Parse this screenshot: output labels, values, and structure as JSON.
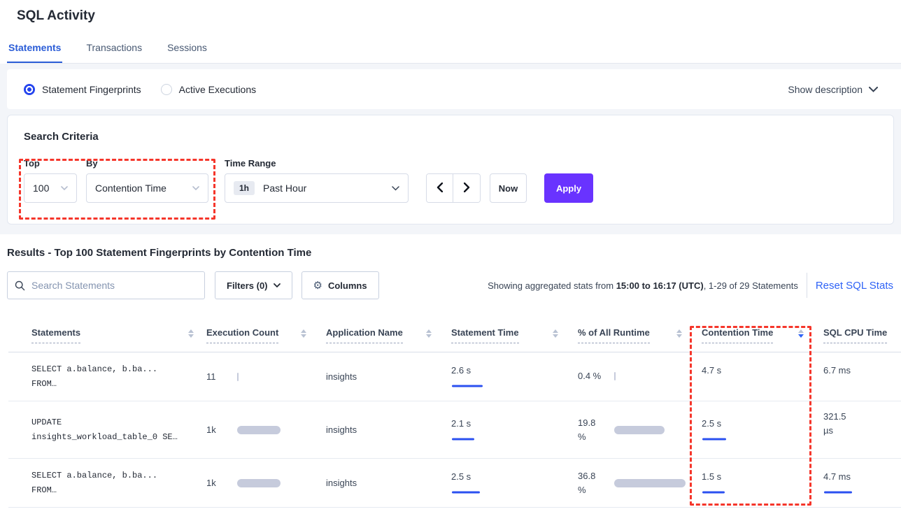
{
  "colors": {
    "accent_blue": "#2b5dd7",
    "link_blue": "#2e62f6",
    "apply_purple": "#6933ff",
    "highlight_red": "#f5362b",
    "bar_gray": "#c6cbdc",
    "bar_blue": "#2b50f0"
  },
  "header": {
    "title": "SQL Activity",
    "tabs": [
      {
        "label": "Statements"
      },
      {
        "label": "Transactions"
      },
      {
        "label": "Sessions"
      }
    ]
  },
  "view_toggle": {
    "statement_fingerprints": "Statement Fingerprints",
    "active_executions": "Active Executions",
    "show_description": "Show description"
  },
  "search_criteria": {
    "title": "Search Criteria",
    "top_label": "Top",
    "top_value": "100",
    "by_label": "By",
    "by_value": "Contention Time",
    "time_range_label": "Time Range",
    "time_badge": "1h",
    "time_value": "Past Hour",
    "now": "Now",
    "apply": "Apply"
  },
  "results": {
    "heading": "Results - Top 100 Statement Fingerprints by Contention Time",
    "search_placeholder": "Search Statements",
    "filters": "Filters (0)",
    "columns": "Columns",
    "stats_prefix": "Showing aggregated stats from ",
    "stats_bold": "15:00 to 16:17 (UTC)",
    "stats_suffix": ", 1-29 of 29 Statements",
    "reset": "Reset SQL Stats"
  },
  "table": {
    "headers": [
      {
        "label": "Statements"
      },
      {
        "label": "Execution Count"
      },
      {
        "label": "Application Name"
      },
      {
        "label": "Statement Time"
      },
      {
        "label": "% of All Runtime"
      },
      {
        "label": "Contention Time",
        "sort": "desc"
      },
      {
        "label": "SQL CPU Time"
      }
    ],
    "rows": [
      {
        "statement_line1": "SELECT a.balance, b.ba...",
        "statement_line2": "FROM…",
        "exec_count": "11",
        "exec_bar": 2,
        "app": "insights",
        "stmt_time": "2.6 s",
        "stmt_gray": 20,
        "stmt_blue": 44,
        "pct": "0.4 %",
        "pct_bar": 2,
        "contention": "4.7 s",
        "cont_gray": 42,
        "cont_blue": 0,
        "cpu": "6.7 ms",
        "cpu_gray": 34,
        "cpu_blue": 0
      },
      {
        "statement_line1": "UPDATE",
        "statement_line2": "insights_workload_table_0 SE…",
        "exec_count": "1k",
        "exec_bar": 62,
        "app": "insights",
        "stmt_time": "2.1 s",
        "stmt_gray": 16,
        "stmt_blue": 32,
        "pct": "19.8\n%",
        "pct_bar": 72,
        "contention": "2.5 s",
        "cont_gray": 24,
        "cont_blue": 34,
        "cpu": "321.5\nµs",
        "cpu_gray": 3,
        "cpu_blue": 0
      },
      {
        "statement_line1": "SELECT a.balance, b.ba...",
        "statement_line2": "FROM…",
        "exec_count": "1k",
        "exec_bar": 62,
        "app": "insights",
        "stmt_time": "2.5 s",
        "stmt_gray": 16,
        "stmt_blue": 40,
        "pct": "36.8\n%",
        "pct_bar": 102,
        "contention": "1.5 s",
        "cont_gray": 14,
        "cont_blue": 32,
        "cpu": "4.7 ms",
        "cpu_gray": 18,
        "cpu_blue": 40
      }
    ]
  }
}
